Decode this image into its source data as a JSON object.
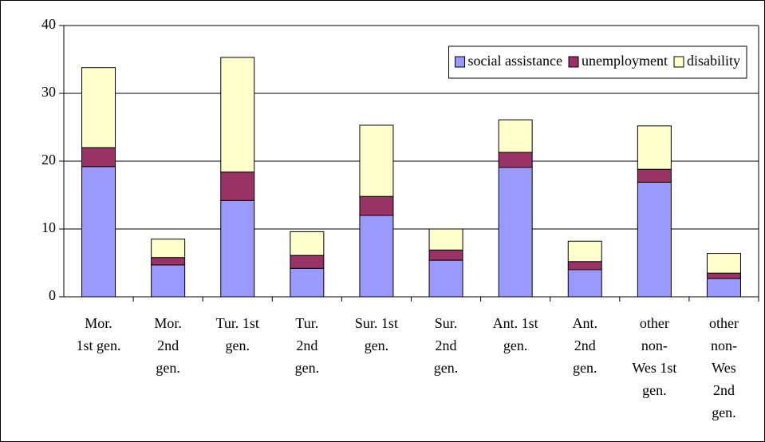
{
  "chart_data": {
    "type": "stacked_bar",
    "categories": [
      "Mor. 1st gen.",
      "Mor. 2nd gen.",
      "Tur. 1st gen.",
      "Tur. 2nd gen.",
      "Sur. 1st gen.",
      "Sur. 2nd gen.",
      "Ant. 1st gen.",
      "Ant. 2nd gen.",
      "other non-Wes 1st gen.",
      "other non-Wes 2nd gen."
    ],
    "series": [
      {
        "name": "social assistance",
        "color": "#9999ff",
        "values": [
          19.2,
          4.7,
          14.2,
          4.2,
          12.0,
          5.4,
          19.1,
          4.0,
          16.9,
          2.7
        ]
      },
      {
        "name": "unemployment",
        "color": "#993366",
        "values": [
          2.8,
          1.1,
          4.2,
          1.9,
          2.8,
          1.5,
          2.2,
          1.2,
          1.9,
          0.8
        ]
      },
      {
        "name": "disability",
        "color": "#ffffcc",
        "values": [
          11.8,
          2.7,
          16.9,
          3.5,
          10.5,
          3.1,
          4.8,
          3.0,
          6.4,
          2.9
        ]
      }
    ],
    "ylim": [
      0,
      40
    ],
    "yticks": [
      0,
      10,
      20,
      30,
      40
    ],
    "grid": true,
    "legend": "top-right"
  }
}
